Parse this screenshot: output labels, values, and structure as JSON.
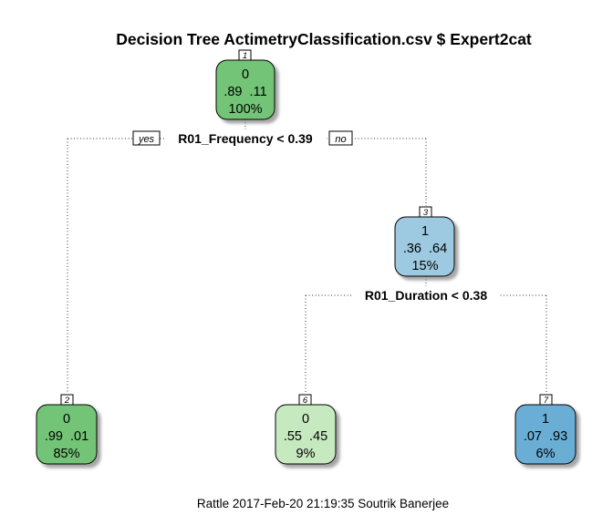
{
  "title": "Decision Tree ActimetryClassification.csv $ Expert2cat",
  "footer": "Rattle 2017-Feb-20 21:19:35 Soutrik Banerjee",
  "branch_labels": {
    "yes": "yes",
    "no": "no"
  },
  "colors": {
    "class0_dark": "#73c476",
    "class0_light": "#c7e9c0",
    "class1_light": "#9ecae1",
    "class1_dark": "#6baed6",
    "edge": "#333333",
    "border": "#000000"
  },
  "nodes": [
    {
      "id": "node-1",
      "number": "1",
      "class": "0",
      "probs": ".89  .11",
      "percent": "100%",
      "color": "#73c476"
    },
    {
      "id": "node-3",
      "number": "3",
      "class": "1",
      "probs": ".36  .64",
      "percent": "15%",
      "color": "#9ecae1"
    },
    {
      "id": "node-2",
      "number": "2",
      "class": "0",
      "probs": ".99  .01",
      "percent": "85%",
      "color": "#73c476"
    },
    {
      "id": "node-6",
      "number": "6",
      "class": "0",
      "probs": ".55  .45",
      "percent": "9%",
      "color": "#c7e9c0"
    },
    {
      "id": "node-7",
      "number": "7",
      "class": "1",
      "probs": ".07  .93",
      "percent": "6%",
      "color": "#6baed6"
    }
  ],
  "splits": [
    {
      "id": "split-1",
      "label": "R01_Frequency < 0.39"
    },
    {
      "id": "split-3",
      "label": "R01_Duration < 0.38"
    }
  ]
}
